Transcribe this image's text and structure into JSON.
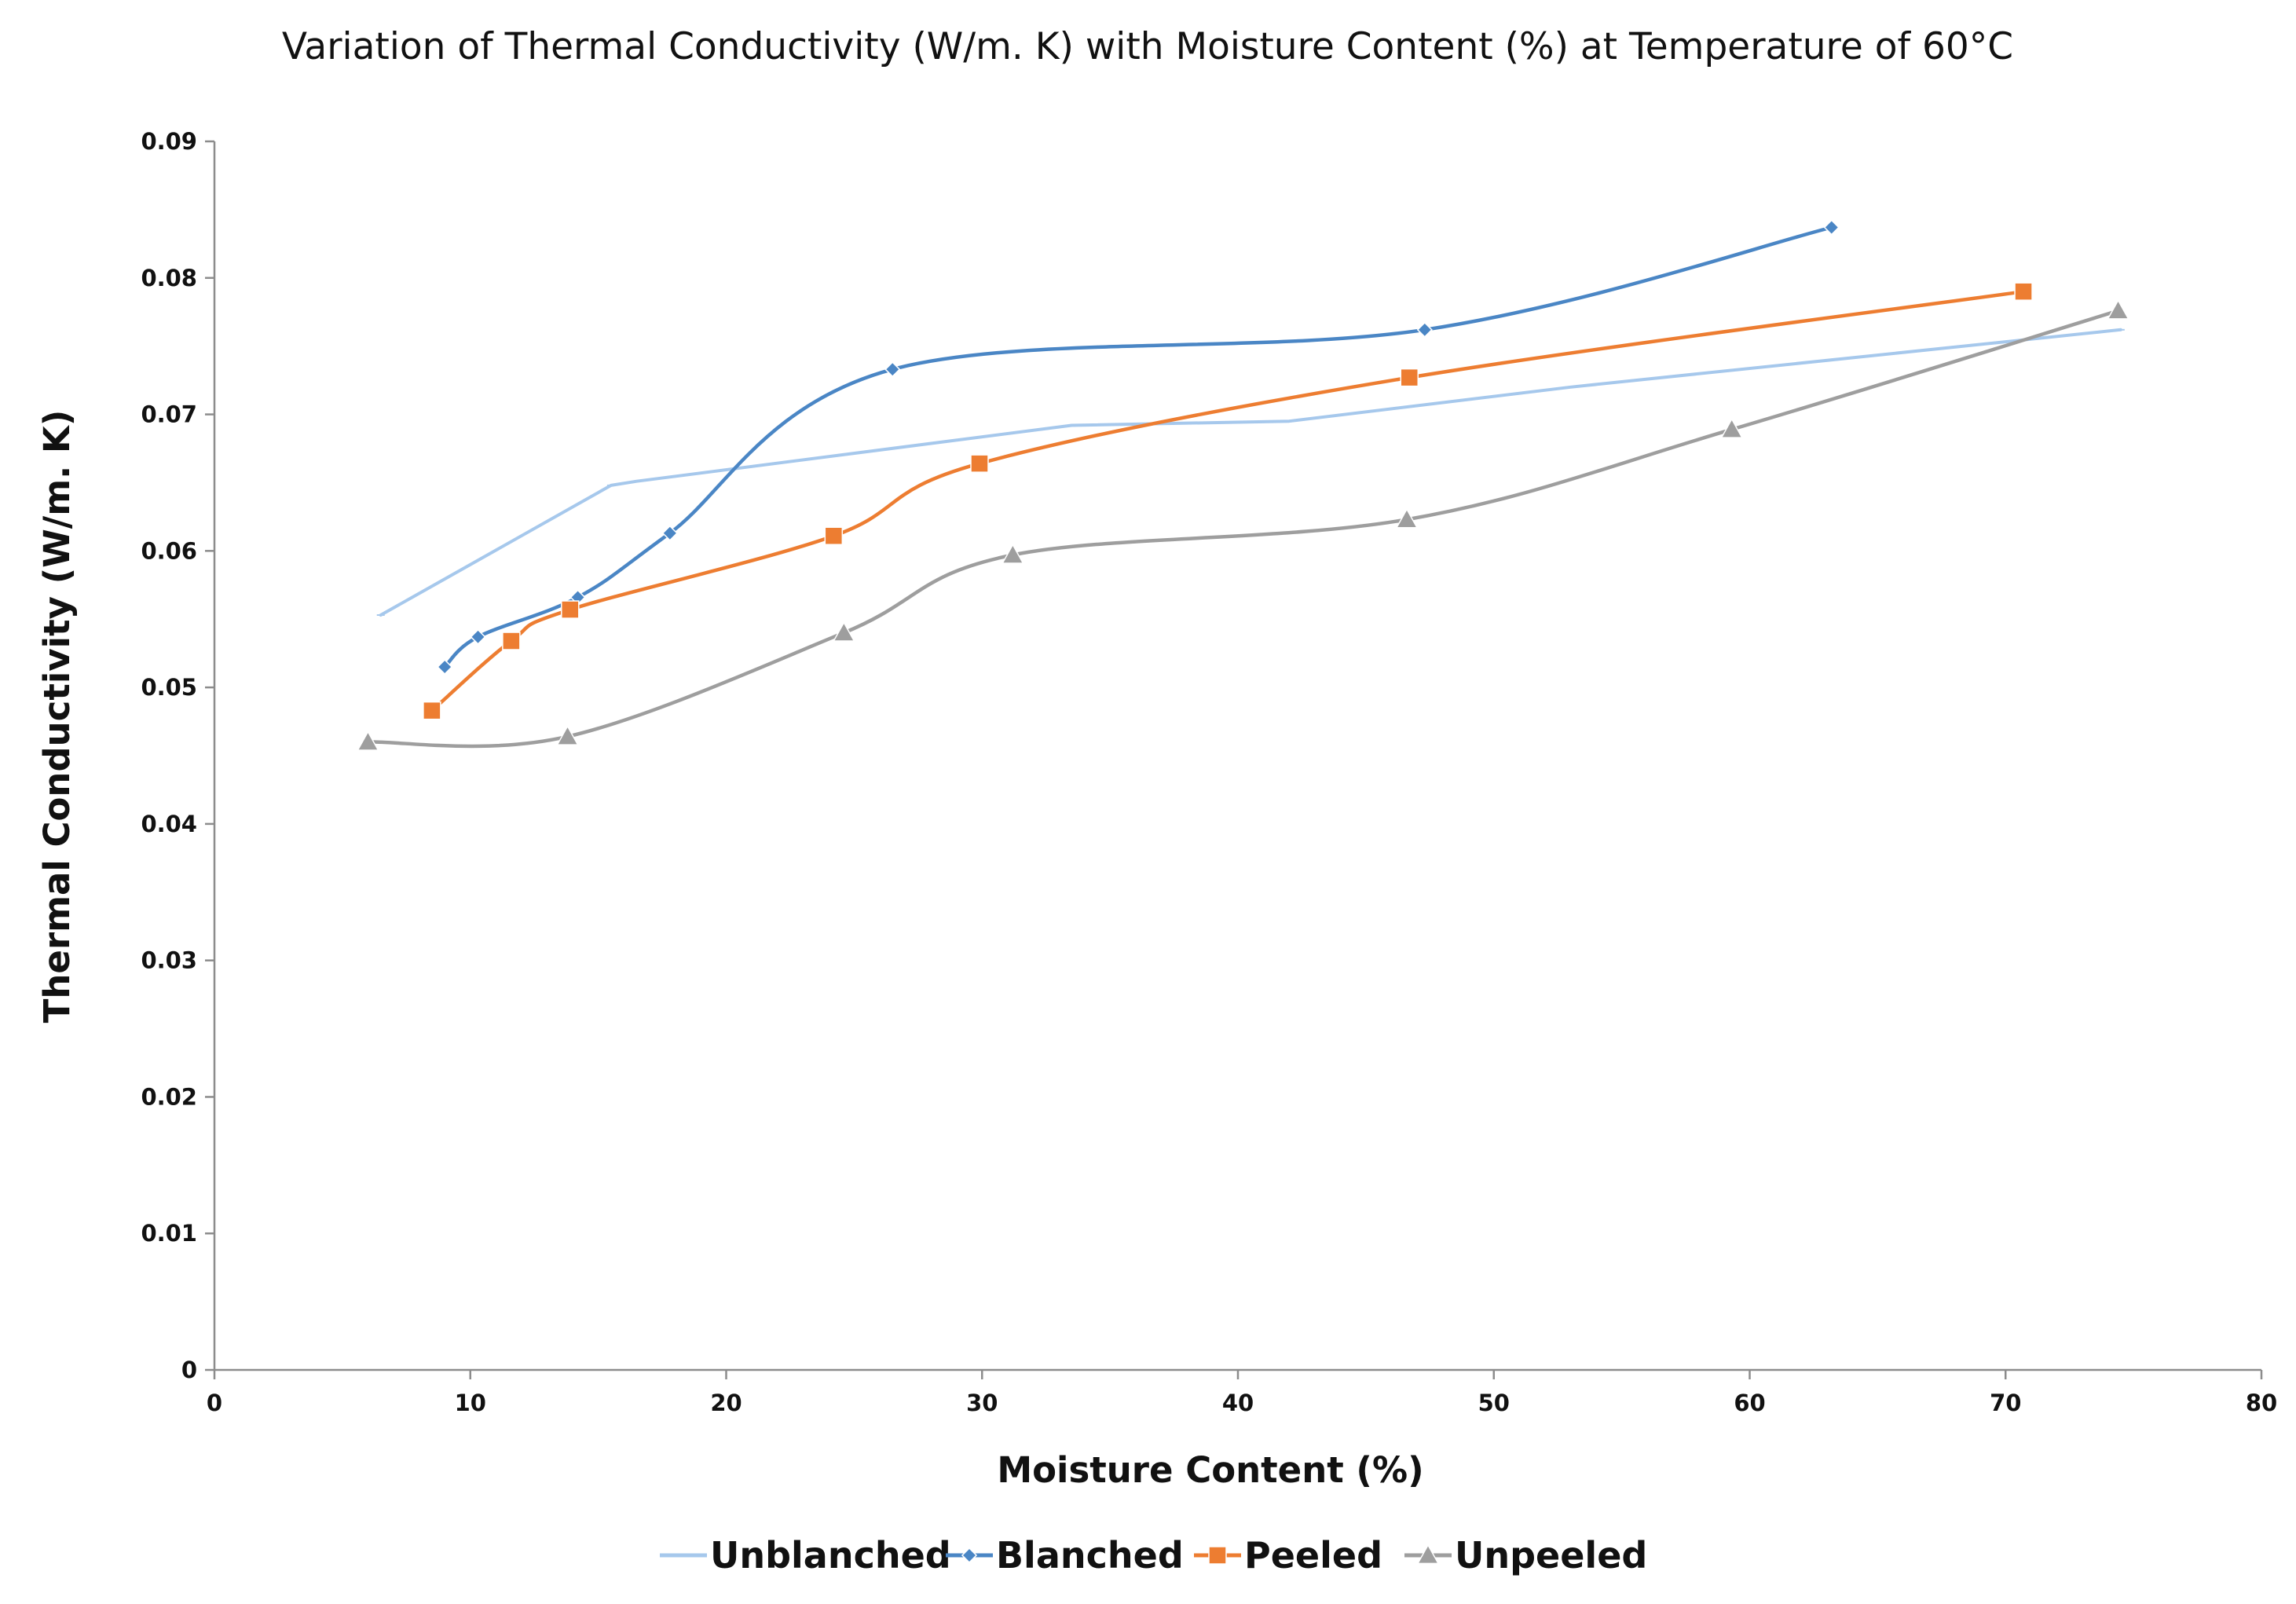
{
  "chart_data": {
    "type": "line",
    "title": "Variation of Thermal Conductivity (W/m. K) with Moisture Content (%) at Temperature of 60°C",
    "xlabel": "Moisture Content (%)",
    "ylabel": "Thermal Conductivity (W/m. K)",
    "xlim": [
      0,
      80
    ],
    "ylim": [
      0,
      0.09
    ],
    "x_ticks": [
      "0",
      "10",
      "20",
      "30",
      "40",
      "50",
      "60",
      "70",
      "80"
    ],
    "y_ticks": [
      "0",
      "0.01",
      "0.02",
      "0.03",
      "0.04",
      "0.05",
      "0.06",
      "0.07",
      "0.08",
      "0.09"
    ],
    "grid": false,
    "legend_position": "bottom",
    "series": [
      {
        "name": "Unblanched",
        "color": "#a6c8ec",
        "marker": "none",
        "smooth": false,
        "x": [
          6.5,
          15.5,
          16.5,
          33.5,
          42.0,
          53.0,
          74.5
        ],
        "y": [
          0.0553,
          0.0648,
          0.0651,
          0.0692,
          0.0695,
          0.072,
          0.0762
        ]
      },
      {
        "name": "Blanched",
        "color": "#4a86c5",
        "marker": "diamond",
        "smooth": true,
        "x": [
          9.0,
          10.3,
          14.2,
          17.8,
          26.5,
          47.3,
          63.2
        ],
        "y": [
          0.0515,
          0.0537,
          0.0566,
          0.0613,
          0.0733,
          0.0762,
          0.0837
        ]
      },
      {
        "name": "Peeled",
        "color": "#ed7d31",
        "marker": "square",
        "smooth": true,
        "x": [
          8.5,
          11.6,
          13.9,
          24.2,
          29.9,
          46.7,
          70.7
        ],
        "y": [
          0.0483,
          0.0534,
          0.0557,
          0.0611,
          0.0664,
          0.0727,
          0.079
        ]
      },
      {
        "name": "Unpeeled",
        "color": "#9e9e9e",
        "marker": "triangle",
        "smooth": true,
        "x": [
          6.0,
          13.8,
          24.6,
          31.2,
          46.6,
          59.3,
          74.4
        ],
        "y": [
          0.046,
          0.0464,
          0.054,
          0.0597,
          0.0623,
          0.0689,
          0.0776
        ]
      }
    ]
  }
}
